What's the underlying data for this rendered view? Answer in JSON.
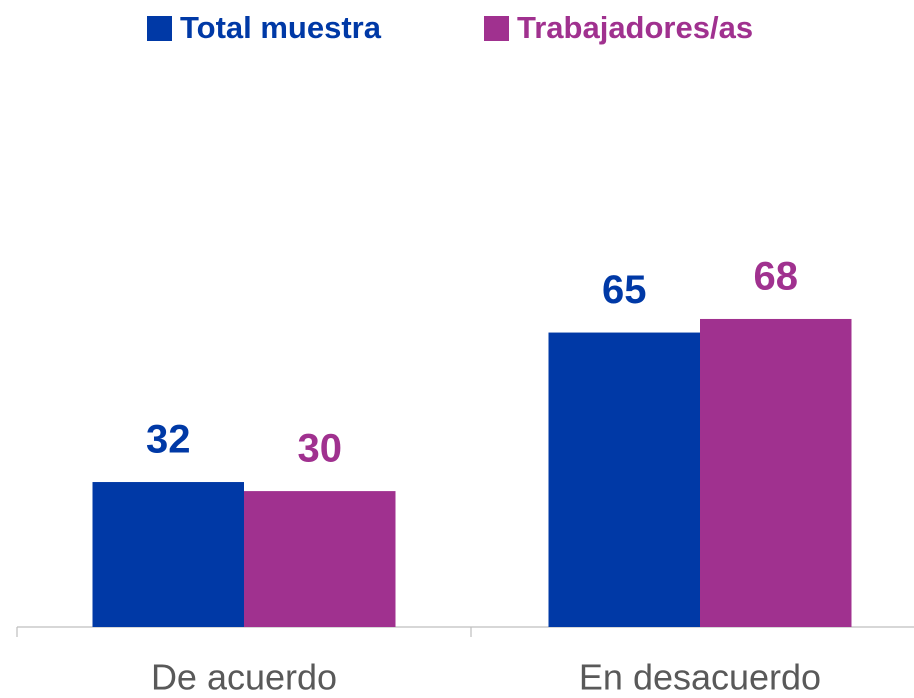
{
  "chart_data": {
    "type": "bar",
    "categories": [
      "De acuerdo",
      "En desacuerdo"
    ],
    "series": [
      {
        "name": "Total muestra",
        "color": "#0039a6",
        "values": [
          32,
          65
        ]
      },
      {
        "name": "Trabajadores/as",
        "color": "#a0318f",
        "values": [
          30,
          68
        ]
      }
    ],
    "ylim": [
      0,
      100
    ],
    "legend": "top"
  }
}
